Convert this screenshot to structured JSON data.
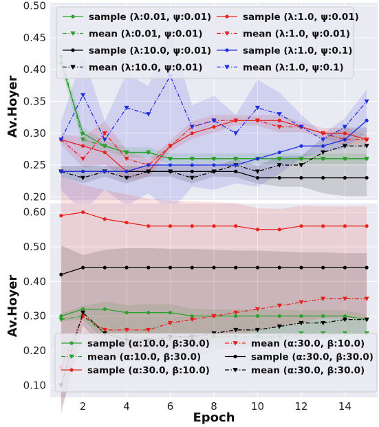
{
  "chart_data": [
    {
      "type": "line",
      "xlabel": "",
      "ylabel": "Av.Hoyer",
      "x": [
        1,
        2,
        3,
        4,
        5,
        6,
        7,
        8,
        9,
        10,
        11,
        12,
        13,
        14,
        15
      ],
      "xlim": [
        0.5,
        15.5
      ],
      "ylim": [
        0.195,
        0.505
      ],
      "yticks": [
        0.2,
        0.25,
        0.3,
        0.35,
        0.4,
        0.45,
        0.5
      ],
      "ytick_labels": [
        "0.20",
        "0.25",
        "0.30",
        "0.35",
        "0.40",
        "0.45",
        "0.50"
      ],
      "grid": true,
      "legend_placement": "top",
      "legend_columns": 2,
      "series": [
        {
          "name": "sample (λ:0.01, ψ:0.01)",
          "color": "#2ca02c",
          "style": "solid",
          "marker": "dot",
          "values": [
            0.41,
            0.3,
            0.28,
            0.27,
            0.27,
            0.26,
            0.26,
            0.26,
            0.26,
            0.26,
            0.26,
            0.26,
            0.26,
            0.26,
            0.26
          ]
        },
        {
          "name": "mean (λ:0.01, ψ:0.01)",
          "color": "#2ca02c",
          "style": "dashdot",
          "marker": "triangle",
          "values": [
            0.42,
            0.29,
            0.28,
            0.27,
            0.27,
            0.26,
            0.26,
            0.26,
            0.26,
            0.26,
            0.26,
            0.26,
            0.26,
            0.26,
            0.26
          ]
        },
        {
          "name": "sample (λ:1.0, ψ:0.01)",
          "color": "#e8231f",
          "style": "solid",
          "marker": "dot",
          "values": [
            0.29,
            0.28,
            0.27,
            0.24,
            0.24,
            0.28,
            0.3,
            0.31,
            0.32,
            0.32,
            0.32,
            0.31,
            0.3,
            0.3,
            0.29
          ]
        },
        {
          "name": "mean (λ:1.0, ψ:0.01)",
          "color": "#e8231f",
          "style": "dashdot",
          "marker": "triangle",
          "values": [
            0.29,
            0.26,
            0.3,
            0.26,
            0.25,
            0.28,
            0.31,
            0.32,
            0.32,
            0.32,
            0.31,
            0.31,
            0.3,
            0.29,
            0.29
          ]
        },
        {
          "name": "sample (λ:10.0, ψ:0.01)",
          "color": "#000000",
          "style": "solid",
          "marker": "dot",
          "values": [
            0.24,
            0.24,
            0.24,
            0.24,
            0.24,
            0.24,
            0.24,
            0.24,
            0.24,
            0.23,
            0.23,
            0.23,
            0.23,
            0.23,
            0.23
          ]
        },
        {
          "name": "mean (λ:10.0, ψ:0.01)",
          "color": "#000000",
          "style": "dashdot",
          "marker": "triangle",
          "values": [
            0.24,
            0.23,
            0.24,
            0.23,
            0.24,
            0.24,
            0.23,
            0.24,
            0.25,
            0.24,
            0.25,
            0.25,
            0.27,
            0.28,
            0.28
          ]
        },
        {
          "name": "sample (λ:1.0, ψ:0.1)",
          "color": "#1f2fe0",
          "style": "solid",
          "marker": "dot",
          "values": [
            0.24,
            0.24,
            0.24,
            0.24,
            0.25,
            0.25,
            0.25,
            0.25,
            0.25,
            0.26,
            0.27,
            0.28,
            0.28,
            0.29,
            0.32
          ]
        },
        {
          "name": "mean (λ:1.0, ψ:0.1)",
          "color": "#1f2fe0",
          "style": "dashdot",
          "marker": "triangle",
          "values": [
            0.29,
            0.36,
            0.29,
            0.34,
            0.33,
            0.39,
            0.31,
            0.32,
            0.3,
            0.34,
            0.33,
            0.31,
            0.29,
            0.31,
            0.35
          ]
        }
      ]
    },
    {
      "type": "line",
      "xlabel": "Epoch",
      "ylabel": "Av.Hoyer",
      "x": [
        1,
        2,
        3,
        4,
        5,
        6,
        7,
        8,
        9,
        10,
        11,
        12,
        13,
        14,
        15
      ],
      "xlim": [
        0.5,
        15.5
      ],
      "ylim": [
        0.065,
        0.625
      ],
      "yticks": [
        0.1,
        0.2,
        0.3,
        0.4,
        0.5,
        0.6
      ],
      "ytick_labels": [
        "0.10",
        "0.20",
        "0.30",
        "0.40",
        "0.50",
        "0.60"
      ],
      "xticks": [
        2,
        4,
        6,
        8,
        10,
        12,
        14
      ],
      "xtick_labels": [
        "2",
        "4",
        "6",
        "8",
        "10",
        "12",
        "14"
      ],
      "grid": true,
      "legend_placement": "bottom",
      "legend_columns": 2,
      "series": [
        {
          "name": "sample (α:10.0, β:30.0)",
          "color": "#2ca02c",
          "style": "solid",
          "marker": "dot",
          "values": [
            0.3,
            0.32,
            0.32,
            0.31,
            0.31,
            0.31,
            0.3,
            0.3,
            0.3,
            0.3,
            0.3,
            0.3,
            0.3,
            0.3,
            0.29
          ]
        },
        {
          "name": "mean (α:10.0, β:30.0)",
          "color": "#2ca02c",
          "style": "dashdot",
          "marker": "triangle",
          "values": [
            0.29,
            0.3,
            0.25,
            0.24,
            0.23,
            0.23,
            0.23,
            0.24,
            0.24,
            0.24,
            0.24,
            0.25,
            0.25,
            0.25,
            0.25
          ]
        },
        {
          "name": "sample (α:30.0, β:10.0)",
          "color": "#e8231f",
          "style": "solid",
          "marker": "dot",
          "values": [
            0.59,
            0.6,
            0.58,
            0.57,
            0.56,
            0.56,
            0.56,
            0.56,
            0.56,
            0.55,
            0.55,
            0.56,
            0.56,
            0.56,
            0.56
          ]
        },
        {
          "name": "mean (α:30.0, β:10.0)",
          "color": "#e8231f",
          "style": "dashdot",
          "marker": "triangle",
          "values": [
            0.15,
            0.3,
            0.26,
            0.26,
            0.26,
            0.28,
            0.29,
            0.3,
            0.31,
            0.32,
            0.33,
            0.34,
            0.35,
            0.35,
            0.35
          ]
        },
        {
          "name": "sample (α:30.0, β:30.0)",
          "color": "#000000",
          "style": "solid",
          "marker": "dot",
          "values": [
            0.42,
            0.44,
            0.44,
            0.44,
            0.44,
            0.44,
            0.44,
            0.44,
            0.44,
            0.44,
            0.44,
            0.44,
            0.44,
            0.44,
            0.44
          ]
        },
        {
          "name": "mean (α:30.0, β:30.0)",
          "color": "#000000",
          "style": "dashdot",
          "marker": "triangle",
          "values": [
            0.1,
            0.31,
            0.25,
            0.23,
            0.23,
            0.24,
            0.24,
            0.25,
            0.26,
            0.26,
            0.27,
            0.28,
            0.28,
            0.29,
            0.29
          ]
        }
      ]
    }
  ]
}
